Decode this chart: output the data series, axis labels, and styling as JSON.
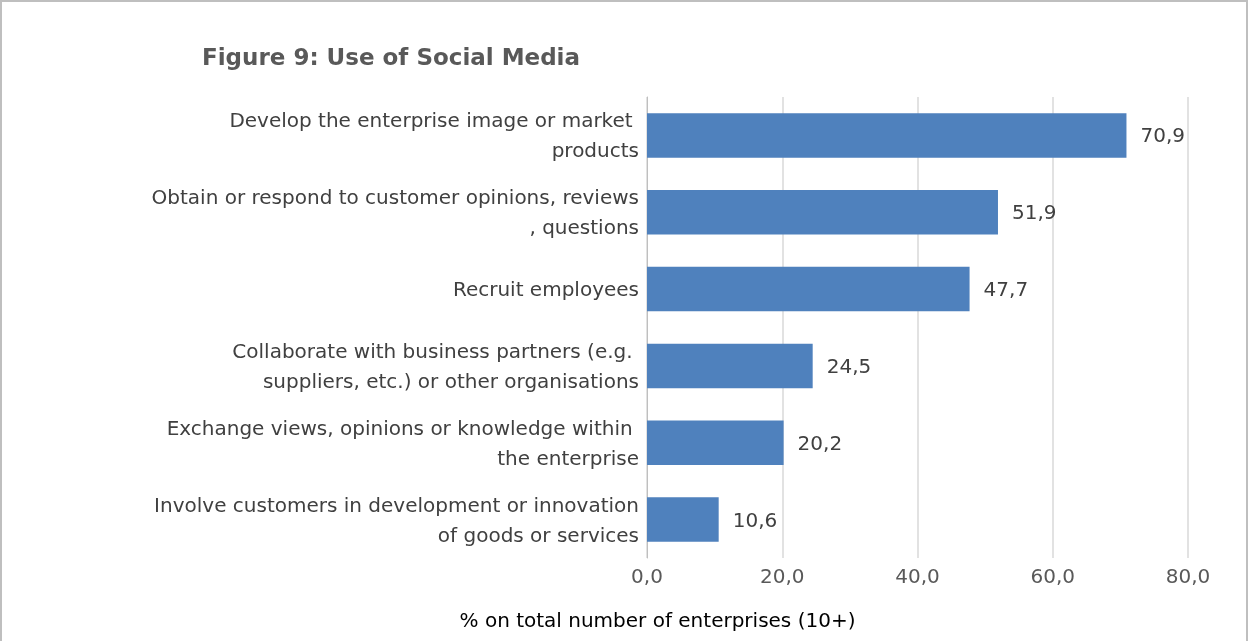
{
  "chart_data": {
    "type": "bar",
    "orientation": "horizontal",
    "title": "Figure 9: Use of Social Media",
    "xlabel": "% on total number of enterprises (10+)",
    "categories": [
      "Develop the enterprise image or market products",
      "Obtain or respond to customer opinions, reviews, questions",
      "Recruit employees",
      "Collaborate with business partners (e.g. suppliers, etc.) or other organisations",
      "Exchange views, opinions or knowledge within the enterprise",
      "Involve customers in development or innovation of goods or services"
    ],
    "values": [
      70.9,
      51.9,
      47.7,
      24.5,
      20.2,
      10.6
    ],
    "value_labels": [
      "70,9",
      "51,9",
      "47,7",
      "24,5",
      "20,2",
      "10,6"
    ],
    "color": "#4f81bd",
    "xlim": [
      0,
      80
    ],
    "xticks": [
      {
        "value": 0,
        "label": "0,0"
      },
      {
        "value": 20,
        "label": "20,0"
      },
      {
        "value": 40,
        "label": "40,0"
      },
      {
        "value": 60,
        "label": "60,0"
      },
      {
        "value": 80,
        "label": "80,0"
      }
    ],
    "grid": "x"
  }
}
